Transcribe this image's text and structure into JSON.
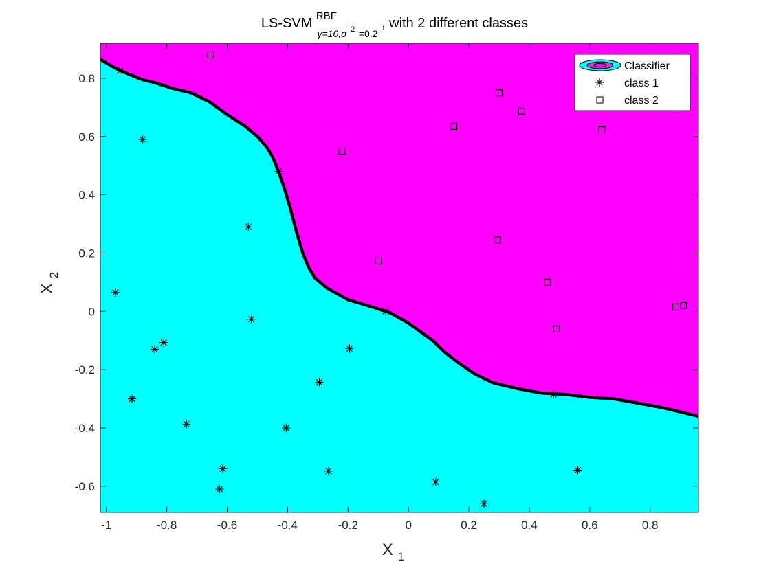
{
  "chart_data": {
    "type": "scatter",
    "title": {
      "main": "LS-SVM",
      "superscript": "RBF",
      "subscript": "γ=10,σ",
      "subscript_power": "2",
      "subscript_end": "=0.2",
      "suffix": ", with 2 different classes"
    },
    "xlabel": {
      "base": "X",
      "sub": "1"
    },
    "ylabel": {
      "base": "X",
      "sub": "2"
    },
    "xlim": [
      -1.02,
      0.96
    ],
    "ylim": [
      -0.69,
      0.92
    ],
    "xticks": [
      -1,
      -0.8,
      -0.6,
      -0.4,
      -0.2,
      0,
      0.2,
      0.4,
      0.6,
      0.8
    ],
    "xtick_labels": [
      "-1",
      "-0.8",
      "-0.6",
      "-0.4",
      "-0.2",
      "0",
      "0.2",
      "0.4",
      "0.6",
      "0.8"
    ],
    "yticks": [
      -0.6,
      -0.4,
      -0.2,
      0,
      0.2,
      0.4,
      0.6,
      0.8
    ],
    "ytick_labels": [
      "-0.6",
      "-0.4",
      "-0.2",
      "0",
      "0.2",
      "0.4",
      "0.6",
      "0.8"
    ],
    "grid": false,
    "legend_position": "top-right",
    "legend": [
      "Classifier",
      "class 1",
      "class 2"
    ],
    "region_colors": {
      "class1": "#00ffff",
      "class2": "#ff00ff"
    },
    "boundary": [
      [
        -1.02,
        0.865
      ],
      [
        -0.98,
        0.84
      ],
      [
        -0.94,
        0.82
      ],
      [
        -0.88,
        0.795
      ],
      [
        -0.84,
        0.785
      ],
      [
        -0.78,
        0.765
      ],
      [
        -0.72,
        0.75
      ],
      [
        -0.66,
        0.72
      ],
      [
        -0.6,
        0.675
      ],
      [
        -0.54,
        0.635
      ],
      [
        -0.5,
        0.6
      ],
      [
        -0.47,
        0.565
      ],
      [
        -0.45,
        0.53
      ],
      [
        -0.43,
        0.48
      ],
      [
        -0.41,
        0.42
      ],
      [
        -0.39,
        0.35
      ],
      [
        -0.37,
        0.27
      ],
      [
        -0.35,
        0.2
      ],
      [
        -0.33,
        0.15
      ],
      [
        -0.31,
        0.115
      ],
      [
        -0.27,
        0.08
      ],
      [
        -0.2,
        0.04
      ],
      [
        -0.12,
        0.015
      ],
      [
        -0.06,
        -0.005
      ],
      [
        0.0,
        -0.04
      ],
      [
        0.04,
        -0.07
      ],
      [
        0.08,
        -0.1
      ],
      [
        0.12,
        -0.14
      ],
      [
        0.17,
        -0.18
      ],
      [
        0.22,
        -0.215
      ],
      [
        0.28,
        -0.245
      ],
      [
        0.36,
        -0.265
      ],
      [
        0.44,
        -0.28
      ],
      [
        0.52,
        -0.285
      ],
      [
        0.6,
        -0.295
      ],
      [
        0.68,
        -0.3
      ],
      [
        0.76,
        -0.315
      ],
      [
        0.84,
        -0.33
      ],
      [
        0.9,
        -0.345
      ],
      [
        0.96,
        -0.36
      ]
    ],
    "series": [
      {
        "name": "class 1",
        "marker": "asterisk",
        "points": [
          [
            -0.955,
            0.825
          ],
          [
            -0.88,
            0.59
          ],
          [
            -0.43,
            0.48
          ],
          [
            -0.53,
            0.29
          ],
          [
            -0.97,
            0.065
          ],
          [
            -0.52,
            -0.027
          ],
          [
            -0.81,
            -0.107
          ],
          [
            -0.84,
            -0.13
          ],
          [
            -0.195,
            -0.128
          ],
          [
            -0.295,
            -0.243
          ],
          [
            -0.915,
            -0.3
          ],
          [
            -0.735,
            -0.387
          ],
          [
            -0.405,
            -0.4
          ],
          [
            -0.615,
            -0.54
          ],
          [
            -0.265,
            -0.548
          ],
          [
            -0.625,
            -0.61
          ],
          [
            0.09,
            -0.585
          ],
          [
            0.25,
            -0.66
          ],
          [
            0.56,
            -0.545
          ],
          [
            -0.075,
            0.0
          ],
          [
            0.48,
            -0.285
          ]
        ]
      },
      {
        "name": "class 2",
        "marker": "square",
        "points": [
          [
            -0.655,
            0.88
          ],
          [
            0.3,
            0.75
          ],
          [
            0.375,
            0.687
          ],
          [
            0.15,
            0.635
          ],
          [
            0.64,
            0.623
          ],
          [
            -0.22,
            0.55
          ],
          [
            0.295,
            0.245
          ],
          [
            -0.1,
            0.173
          ],
          [
            0.46,
            0.1
          ],
          [
            0.885,
            0.015
          ],
          [
            0.91,
            0.02
          ],
          [
            0.49,
            -0.06
          ]
        ]
      }
    ]
  }
}
